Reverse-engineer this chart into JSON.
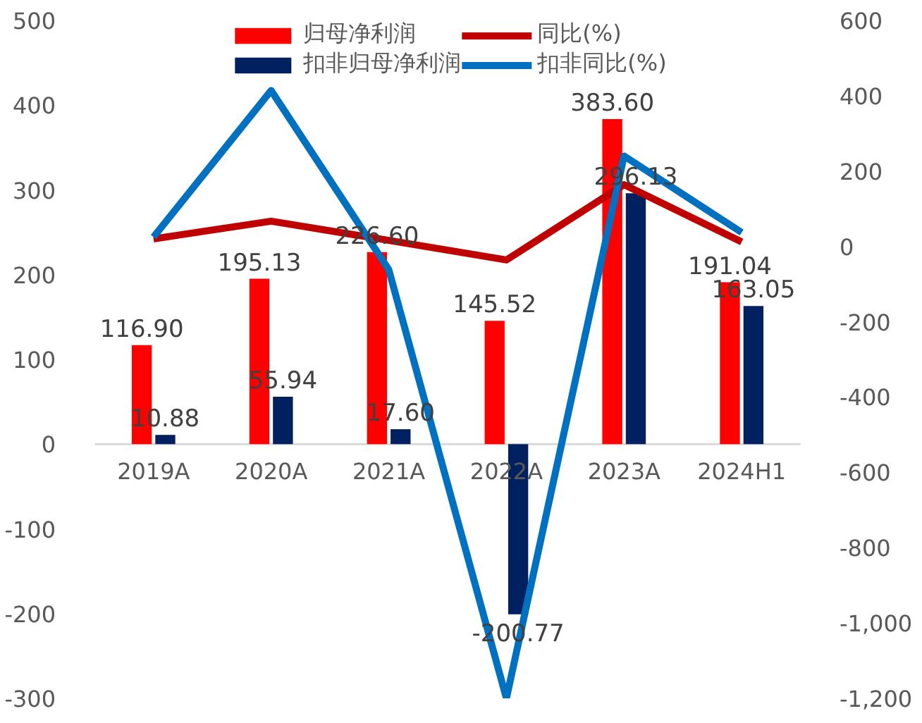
{
  "chart_data": {
    "type": "bar",
    "categories": [
      "2019A",
      "2020A",
      "2021A",
      "2022A",
      "2023A",
      "2024H1"
    ],
    "series": [
      {
        "name": "归母净利润",
        "color": "#ff0000",
        "values": [
          116.9,
          195.13,
          226.6,
          145.52,
          383.6,
          191.04
        ],
        "value_labels": [
          "116.90",
          "195.13",
          "226.60",
          "145.52",
          "383.60",
          "191.04"
        ]
      },
      {
        "name": "扣非归母净利润",
        "color": "#002060",
        "values": [
          10.88,
          55.94,
          17.6,
          -200.77,
          296.13,
          163.05
        ],
        "value_labels": [
          "10.88",
          "55.94",
          "17.60",
          "-200.77",
          "296.13",
          "163.05"
        ]
      },
      {
        "name": "同比(%)",
        "type": "line",
        "axis": "y2",
        "color": "#c00000",
        "values": [
          20,
          67,
          16,
          -36,
          164,
          12
        ]
      },
      {
        "name": "扣非同比(%)",
        "type": "line",
        "axis": "y2",
        "color": "#0070c0",
        "values": [
          25,
          414,
          -62,
          -1200,
          240,
          37
        ]
      }
    ],
    "ylim": [
      -300,
      500
    ],
    "yticks": [
      -300,
      -200,
      -100,
      0,
      100,
      200,
      300,
      400,
      500
    ],
    "y2lim": [
      -1200,
      600
    ],
    "y2ticks": [
      {
        "value": -1200,
        "label": "-1,200"
      },
      {
        "value": -1000,
        "label": "-1,000"
      },
      -800,
      -600,
      -400,
      -200,
      0,
      200,
      400,
      600
    ],
    "grid": false,
    "legend": "top"
  }
}
